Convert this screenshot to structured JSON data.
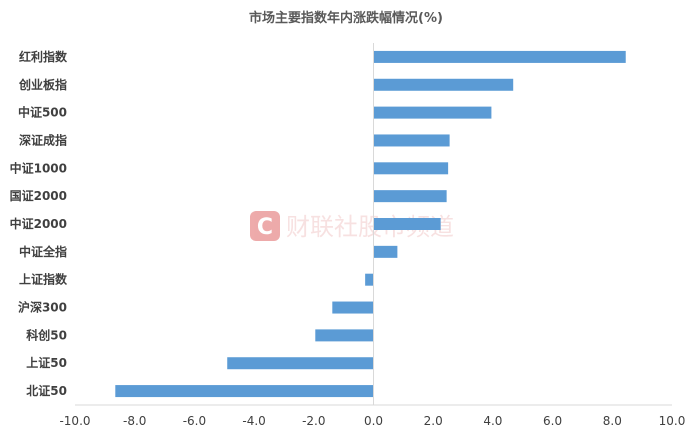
{
  "chart_data": {
    "type": "bar",
    "orientation": "horizontal",
    "title": "市场主要指数年内涨跌幅情况(%)",
    "xlabel": "",
    "ylabel": "",
    "categories": [
      "红利指数",
      "创业板指",
      "中证500",
      "深证成指",
      "中证1000",
      "国证2000",
      "中证2000",
      "中证全指",
      "上证指数",
      "沪深300",
      "科创50",
      "上证50",
      "北证50"
    ],
    "values": [
      8.45,
      4.68,
      3.95,
      2.55,
      2.5,
      2.45,
      2.25,
      0.8,
      -0.28,
      -1.38,
      -1.95,
      -4.9,
      -8.65
    ],
    "xlim": [
      -10,
      10
    ],
    "ticks": [
      -10,
      -8,
      -6,
      -4,
      -2,
      0,
      2,
      4,
      6,
      8,
      10
    ],
    "tick_labels": [
      "-10.0",
      "-8.0",
      "-6.0",
      "-4.0",
      "-2.0",
      "0.0",
      "2.0",
      "4.0",
      "6.0",
      "8.0",
      "10.0"
    ],
    "bar_color": "#5b9bd5",
    "axis_color": "#d9d9d9",
    "grid": false,
    "legend": "none"
  },
  "watermark": {
    "text": "财联社股市频道",
    "logo_letter": "C",
    "color": "#e06666"
  }
}
